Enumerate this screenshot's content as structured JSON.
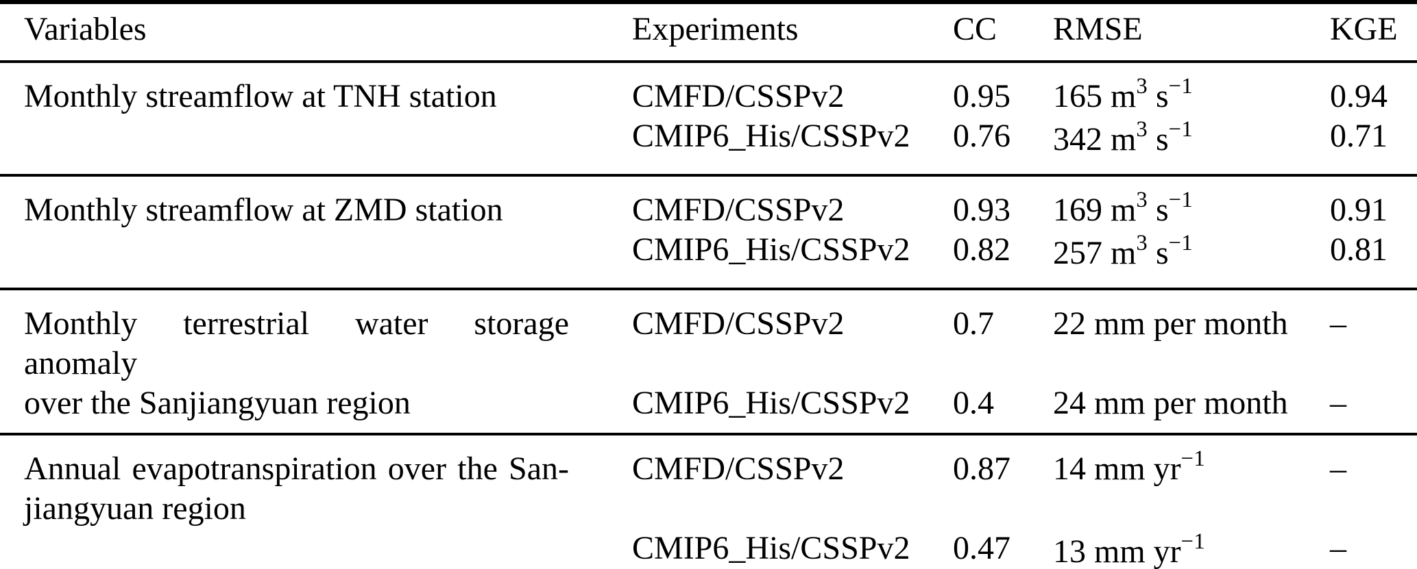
{
  "colors": {
    "background": "#ffffff",
    "text": "#000000",
    "rule": "#000000"
  },
  "table": {
    "headers": [
      "Variables",
      "Experiments",
      "CC",
      "RMSE",
      "KGE"
    ],
    "groups": [
      {
        "variable_lines": [
          "Monthly streamflow at TNH station"
        ],
        "rows": [
          {
            "experiment": "CMFD/CSSPv2",
            "cc": "0.95",
            "rmse": [
              {
                "t": "165 m"
              },
              {
                "t": "3",
                "sup": true
              },
              {
                "t": " s"
              },
              {
                "t": "−1",
                "sup": true
              }
            ],
            "kge": "0.94"
          },
          {
            "experiment": "CMIP6_His/CSSPv2",
            "cc": "0.76",
            "rmse": [
              {
                "t": "342 m"
              },
              {
                "t": "3",
                "sup": true
              },
              {
                "t": " s"
              },
              {
                "t": "−1",
                "sup": true
              }
            ],
            "kge": "0.71"
          }
        ]
      },
      {
        "variable_lines": [
          "Monthly streamflow at ZMD station"
        ],
        "rows": [
          {
            "experiment": "CMFD/CSSPv2",
            "cc": "0.93",
            "rmse": [
              {
                "t": "169 m"
              },
              {
                "t": "3",
                "sup": true
              },
              {
                "t": " s"
              },
              {
                "t": "−1",
                "sup": true
              }
            ],
            "kge": "0.91"
          },
          {
            "experiment": "CMIP6_His/CSSPv2",
            "cc": "0.82",
            "rmse": [
              {
                "t": "257 m"
              },
              {
                "t": "3",
                "sup": true
              },
              {
                "t": " s"
              },
              {
                "t": "−1",
                "sup": true
              }
            ],
            "kge": "0.81"
          }
        ]
      },
      {
        "variable_lines": [
          "Monthly terrestrial water storage anomaly",
          "over the Sanjiangyuan region"
        ],
        "rows": [
          {
            "experiment": "CMFD/CSSPv2",
            "cc": "0.7",
            "rmse": [
              {
                "t": "22 mm per month"
              }
            ],
            "kge": "–"
          },
          {
            "experiment": "CMIP6_His/CSSPv2",
            "cc": "0.4",
            "rmse": [
              {
                "t": "24 mm per month"
              }
            ],
            "kge": "–"
          }
        ]
      },
      {
        "variable_lines": [
          "Annual evapotranspiration over the San-",
          "jiangyuan region"
        ],
        "rows": [
          {
            "experiment": "CMFD/CSSPv2",
            "cc": "0.87",
            "rmse": [
              {
                "t": "14 mm yr"
              },
              {
                "t": "−1",
                "sup": true
              }
            ],
            "kge": "–"
          },
          {
            "experiment": "CMIP6_His/CSSPv2",
            "cc": "0.47",
            "rmse": [
              {
                "t": "13 mm yr"
              },
              {
                "t": "−1",
                "sup": true
              }
            ],
            "kge": "–"
          }
        ]
      }
    ]
  }
}
